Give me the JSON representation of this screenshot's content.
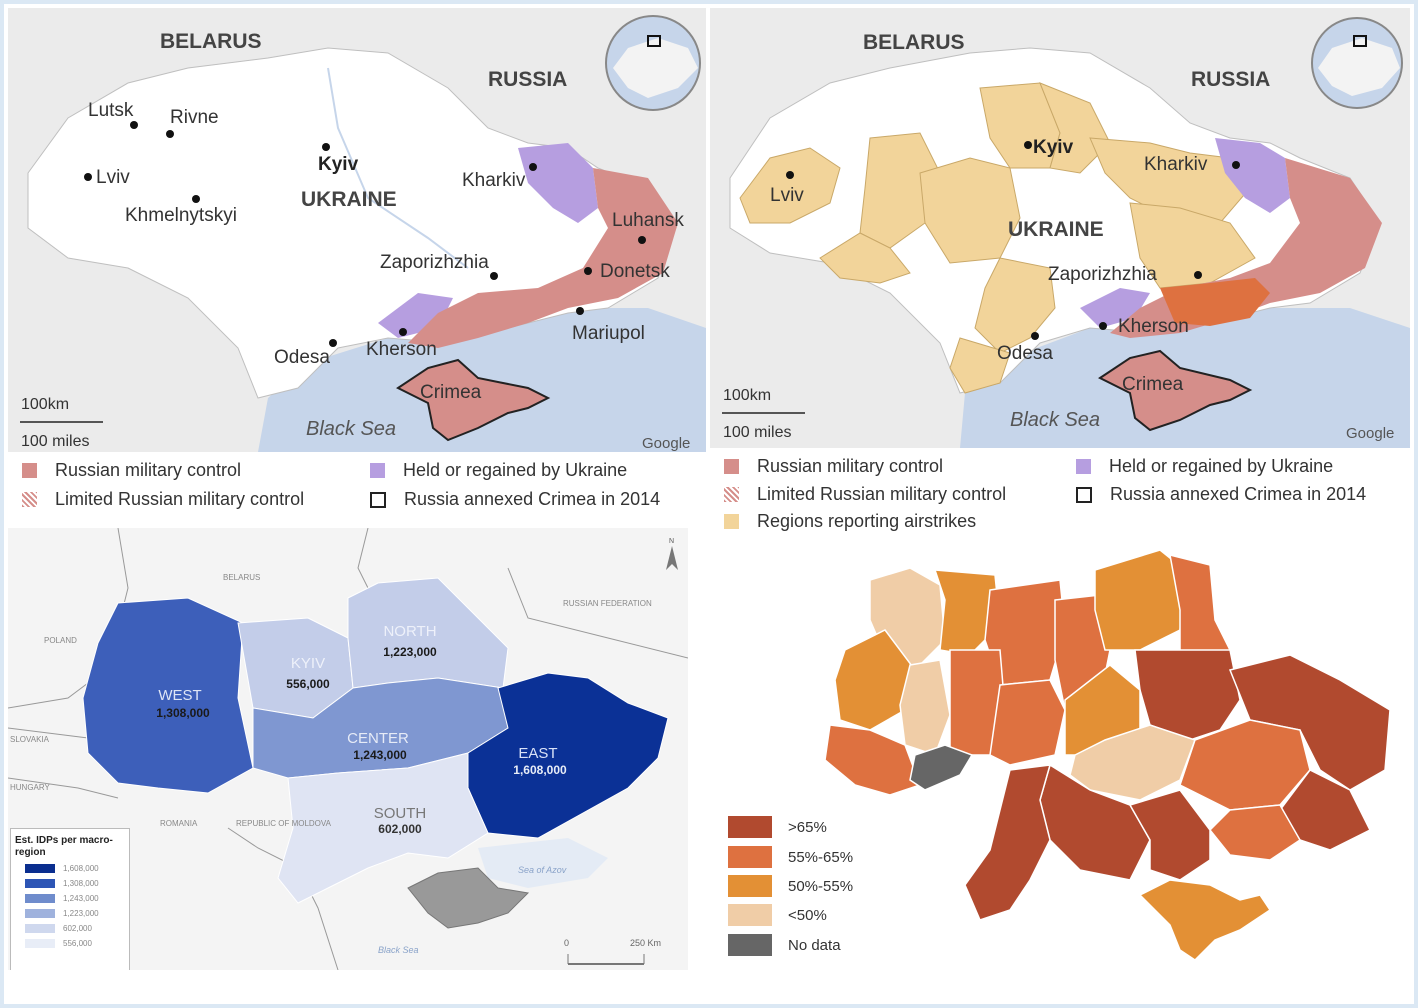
{
  "map1": {
    "countries": {
      "belarus": "BELARUS",
      "russia": "RUSSIA",
      "ukraine": "UKRAINE"
    },
    "cities": [
      "Lutsk",
      "Rivne",
      "Lviv",
      "Kyiv",
      "Khmelnytskyi",
      "Kharkiv",
      "Luhansk",
      "Zaporizhzhia",
      "Donetsk",
      "Mariupol",
      "Odesa",
      "Kherson",
      "Crimea"
    ],
    "sea": "Black Sea",
    "scale_km": "100km",
    "scale_miles": "100 miles",
    "credit": "Google"
  },
  "map2": {
    "countries": {
      "belarus": "BELARUS",
      "russia": "RUSSIA",
      "ukraine": "UKRAINE"
    },
    "cities": [
      "Kyiv",
      "Kharkiv",
      "Lviv",
      "Zaporizhzhia",
      "Kherson",
      "Odesa",
      "Crimea"
    ],
    "sea": "Black Sea",
    "scale_km": "100km",
    "scale_miles": "100 miles",
    "credit": "Google"
  },
  "legend_top": {
    "russian_control": "Russian military control",
    "held_by_ukraine": "Held or regained by Ukraine",
    "limited_control": "Limited Russian military control",
    "crimea_annexed": "Russia annexed Crimea in 2014",
    "airstrikes": "Regions reporting airstrikes"
  },
  "map3": {
    "countries": {
      "belarus": "BELARUS",
      "russia": "RUSSIAN FEDERATION",
      "poland": "POLAND",
      "slovakia": "SLOVAKIA",
      "hungary": "HUNGARY",
      "romania": "ROMANIA",
      "moldova": "REPUBLIC OF MOLDOVA"
    },
    "regions": [
      {
        "name": "WEST",
        "value": "1,308,000"
      },
      {
        "name": "KYIV",
        "value": "556,000"
      },
      {
        "name": "NORTH",
        "value": "1,223,000"
      },
      {
        "name": "CENTER",
        "value": "1,243,000"
      },
      {
        "name": "EAST",
        "value": "1,608,000"
      },
      {
        "name": "SOUTH",
        "value": "602,000"
      }
    ],
    "sea_azov": "Sea of Azov",
    "sea_black": "Black Sea",
    "north_arrow": "N",
    "scale_0": "0",
    "scale_250": "250 Km",
    "legend_title": "Est. IDPs per macro-region",
    "legend_values": [
      "1,608,000",
      "1,308,000",
      "1,243,000",
      "1,223,000",
      "602,000",
      "556,000"
    ],
    "legend_colors": [
      "#0a2e8f",
      "#2d55b5",
      "#6f8ccc",
      "#9fb2dd",
      "#cfd8ee",
      "#e8edf7"
    ]
  },
  "map4": {
    "legend": [
      {
        "label": ">65%",
        "color": "#b14a2f"
      },
      {
        "label": "55%-65%",
        "color": "#de7140"
      },
      {
        "label": "50%-55%",
        "color": "#e39035"
      },
      {
        "label": "<50%",
        "color": "#f0cda7"
      },
      {
        "label": "No data",
        "color": "#666666"
      }
    ]
  }
}
